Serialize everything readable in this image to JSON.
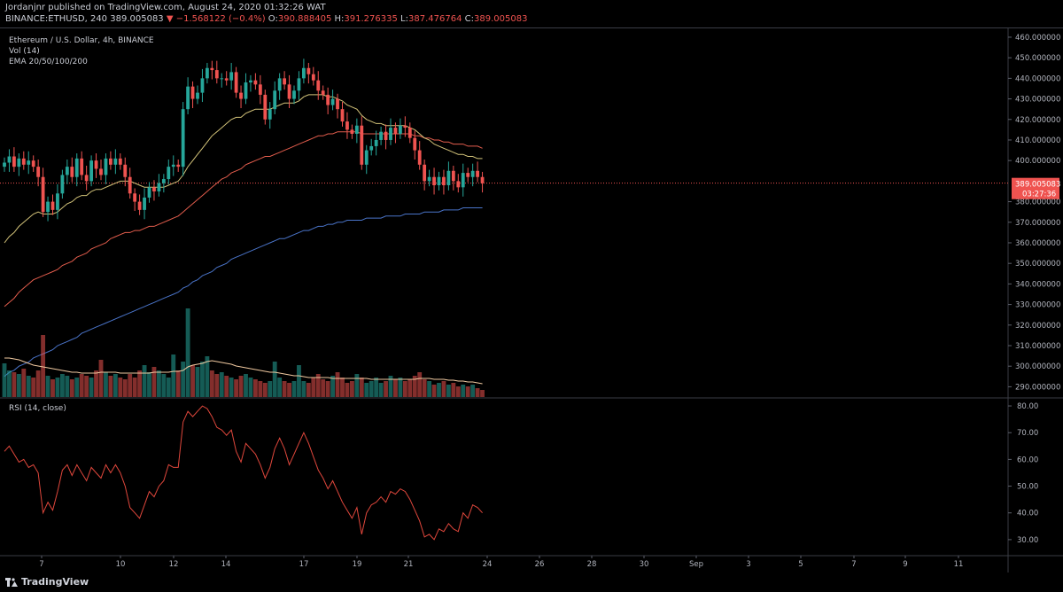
{
  "header": {
    "published_line": "Jordanjnr published on TradingView.com, August 24, 2020 01:32:26 WAT",
    "symbol_interval": "BINANCE:ETHUSD, 240",
    "last_price": "389.005083",
    "change": "▼ −1.568122 (−0.4%)",
    "open_label": "O:",
    "open": "390.888405",
    "high_label": "H:",
    "high": "391.276335",
    "low_label": "L:",
    "low": "387.476764",
    "close_label": "C:",
    "close": "389.005083"
  },
  "legend": {
    "title": "Ethereum / U.S. Dollar, 4h, BINANCE",
    "vol": "Vol (14)",
    "ema": "EMA 20/50/100/200",
    "rsi": "RSI (14, close)"
  },
  "price_tag": {
    "price": "389.005083",
    "countdown": "03:27:36"
  },
  "footer": {
    "brand": "TradingView"
  },
  "colors": {
    "up": "#26a69a",
    "down": "#ef5350",
    "ema20": "#d4c47a",
    "ema50": "#e35d4d",
    "ema200": "#4a74c9",
    "rsi": "#e0473c",
    "vol_ma": "#f0c9a0",
    "tag_bg": "#ef5350"
  },
  "chart_data": [
    {
      "type": "line",
      "panel": "price",
      "x_ticks": [
        "7",
        "10",
        "12",
        "14",
        "17",
        "19",
        "21",
        "24",
        "26",
        "28",
        "30",
        "Sep",
        "3",
        "5",
        "7",
        "9",
        "11"
      ],
      "y_ticks": [
        "460.000000",
        "450.000000",
        "440.000000",
        "430.000000",
        "420.000000",
        "410.000000",
        "400.000000",
        "389.005083",
        "380.000000",
        "370.000000",
        "360.000000",
        "350.000000",
        "340.000000",
        "330.000000",
        "320.000000",
        "310.000000",
        "300.000000",
        "290.000000"
      ],
      "ylim": [
        285,
        463
      ],
      "close": [
        399,
        402,
        397,
        401,
        398,
        400,
        397,
        392,
        375,
        380,
        376,
        384,
        393,
        397,
        392,
        401,
        393,
        390,
        400,
        396,
        393,
        401,
        398,
        401,
        398,
        392,
        384,
        380,
        376,
        382,
        387,
        385,
        389,
        391,
        397,
        398,
        397,
        425,
        436,
        430,
        433,
        440,
        445,
        444,
        440,
        440,
        439,
        443,
        433,
        430,
        438,
        439,
        437,
        432,
        420,
        425,
        434,
        440,
        437,
        430,
        434,
        440,
        445,
        442,
        439,
        434,
        432,
        427,
        430,
        425,
        419,
        415,
        413,
        417,
        398,
        405,
        407,
        410,
        414,
        410,
        416,
        413,
        417,
        416,
        411,
        405,
        398,
        390,
        392,
        388,
        392,
        388,
        395,
        390,
        387,
        394,
        392,
        395,
        392,
        389
      ],
      "ema20": [
        360,
        363,
        365,
        368,
        370,
        372,
        374,
        375,
        374,
        374,
        374,
        375,
        377,
        379,
        380,
        382,
        383,
        383,
        385,
        386,
        386,
        387,
        388,
        389,
        390,
        390,
        390,
        389,
        388,
        387,
        387,
        387,
        387,
        387,
        388,
        389,
        390,
        393,
        397,
        400,
        403,
        406,
        409,
        412,
        414,
        416,
        418,
        420,
        421,
        421,
        423,
        424,
        425,
        425,
        425,
        425,
        426,
        427,
        428,
        428,
        428,
        429,
        431,
        432,
        432,
        432,
        432,
        431,
        431,
        430,
        429,
        427,
        426,
        425,
        422,
        420,
        419,
        418,
        418,
        417,
        417,
        417,
        417,
        417,
        416,
        415,
        413,
        411,
        410,
        408,
        407,
        406,
        405,
        404,
        403,
        403,
        402,
        402,
        401,
        401
      ],
      "ema50": [
        329,
        331,
        333,
        336,
        338,
        340,
        342,
        343,
        344,
        345,
        346,
        347,
        349,
        350,
        351,
        353,
        354,
        355,
        357,
        358,
        359,
        360,
        362,
        363,
        364,
        365,
        365,
        366,
        366,
        367,
        368,
        368,
        369,
        370,
        371,
        372,
        373,
        375,
        377,
        379,
        381,
        383,
        385,
        387,
        389,
        391,
        392,
        394,
        395,
        396,
        398,
        399,
        400,
        401,
        402,
        402,
        403,
        404,
        405,
        406,
        407,
        408,
        409,
        410,
        411,
        412,
        412,
        413,
        413,
        414,
        414,
        414,
        414,
        414,
        413,
        413,
        413,
        413,
        413,
        413,
        413,
        413,
        413,
        413,
        413,
        412,
        412,
        411,
        411,
        410,
        410,
        409,
        409,
        408,
        408,
        408,
        407,
        407,
        407,
        406
      ],
      "ema200": [
        295,
        297,
        298,
        300,
        301,
        302,
        304,
        305,
        306,
        307,
        308,
        310,
        311,
        312,
        313,
        314,
        316,
        317,
        318,
        319,
        320,
        321,
        322,
        323,
        324,
        325,
        326,
        327,
        328,
        329,
        330,
        331,
        332,
        333,
        334,
        335,
        336,
        338,
        339,
        341,
        342,
        344,
        345,
        346,
        348,
        349,
        350,
        352,
        353,
        354,
        355,
        356,
        357,
        358,
        359,
        360,
        361,
        362,
        362,
        363,
        364,
        365,
        366,
        366,
        367,
        368,
        368,
        369,
        369,
        370,
        370,
        371,
        371,
        371,
        371,
        372,
        372,
        372,
        372,
        373,
        373,
        373,
        373,
        374,
        374,
        374,
        374,
        375,
        375,
        375,
        375,
        376,
        376,
        376,
        376,
        377,
        377,
        377,
        377,
        377
      ],
      "last_price": 389.005083
    },
    {
      "type": "bar",
      "panel": "volume",
      "values": [
        38,
        30,
        28,
        26,
        32,
        24,
        22,
        30,
        70,
        24,
        20,
        22,
        26,
        24,
        20,
        22,
        26,
        24,
        22,
        30,
        42,
        28,
        24,
        26,
        22,
        20,
        26,
        22,
        30,
        36,
        28,
        34,
        30,
        26,
        22,
        48,
        30,
        40,
        100,
        36,
        34,
        40,
        46,
        30,
        26,
        28,
        24,
        22,
        20,
        24,
        26,
        22,
        20,
        18,
        16,
        18,
        40,
        22,
        18,
        16,
        18,
        36,
        18,
        16,
        22,
        26,
        20,
        18,
        24,
        28,
        22,
        16,
        18,
        26,
        22,
        16,
        18,
        22,
        16,
        18,
        24,
        20,
        22,
        18,
        20,
        24,
        28,
        20,
        18,
        14,
        16,
        18,
        14,
        16,
        12,
        14,
        12,
        14,
        10,
        8
      ],
      "ma": [
        44,
        44,
        43,
        42,
        40,
        38,
        36,
        35,
        34,
        33,
        32,
        31,
        30,
        29,
        28,
        28,
        27,
        27,
        27,
        27,
        28,
        28,
        28,
        28,
        27,
        27,
        27,
        27,
        27,
        27,
        27,
        28,
        28,
        28,
        28,
        29,
        29,
        30,
        34,
        36,
        37,
        38,
        40,
        41,
        40,
        39,
        38,
        37,
        35,
        34,
        33,
        32,
        31,
        30,
        29,
        28,
        28,
        27,
        26,
        25,
        24,
        24,
        23,
        22,
        22,
        22,
        22,
        22,
        21,
        21,
        21,
        21,
        21,
        21,
        21,
        21,
        20,
        20,
        20,
        20,
        20,
        20,
        20,
        20,
        20,
        20,
        21,
        21,
        21,
        20,
        20,
        20,
        19,
        19,
        18,
        18,
        17,
        17,
        16,
        15
      ],
      "ylim": [
        0,
        110
      ]
    },
    {
      "type": "line",
      "panel": "rsi",
      "title": "RSI (14, close)",
      "y_ticks": [
        "80.00",
        "70.00",
        "60.00",
        "50.00",
        "40.00",
        "30.00"
      ],
      "ylim": [
        24,
        83
      ],
      "values": [
        63,
        65,
        62,
        59,
        60,
        57,
        58,
        55,
        40,
        44,
        41,
        48,
        56,
        58,
        54,
        58,
        55,
        52,
        57,
        55,
        53,
        58,
        55,
        58,
        55,
        50,
        42,
        40,
        38,
        43,
        48,
        46,
        50,
        52,
        58,
        57,
        57,
        74,
        78,
        76,
        78,
        80,
        79,
        76,
        72,
        71,
        69,
        71,
        63,
        59,
        66,
        64,
        62,
        58,
        53,
        57,
        64,
        68,
        64,
        58,
        62,
        66,
        70,
        66,
        61,
        56,
        53,
        49,
        52,
        48,
        44,
        41,
        38,
        42,
        32,
        40,
        43,
        44,
        46,
        44,
        48,
        47,
        49,
        48,
        45,
        41,
        37,
        31,
        32,
        30,
        34,
        33,
        36,
        34,
        33,
        40,
        38,
        43,
        42,
        40
      ]
    }
  ]
}
